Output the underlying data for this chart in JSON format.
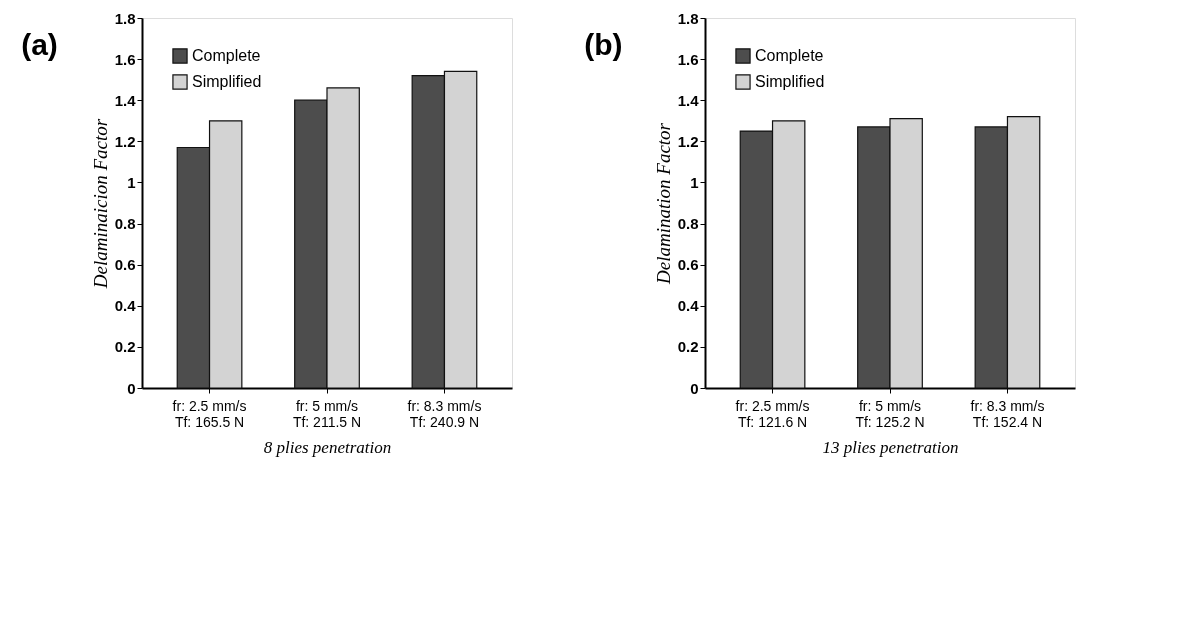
{
  "chart_data": [
    {
      "type": "bar",
      "title": "(a)",
      "ylabel": "Delaminaicion Factor",
      "xlabel": "8 plies penetration",
      "categories": [
        "fr: 2.5 mm/s\nTf: 165.5 N",
        "fr: 5 mm/s\nTf: 211.5 N",
        "fr: 8.3 mm/s\nTf: 240.9 N"
      ],
      "series": [
        {
          "name": "Complete",
          "color": "#4d4d4d",
          "values": [
            1.17,
            1.4,
            1.52
          ]
        },
        {
          "name": "Simplified",
          "color": "#d3d3d3",
          "values": [
            1.3,
            1.46,
            1.54
          ]
        }
      ],
      "ylim": [
        0,
        1.8
      ],
      "yticks": [
        0,
        0.2,
        0.4,
        0.6,
        0.8,
        1,
        1.2,
        1.4,
        1.6,
        1.8
      ],
      "grid": false,
      "legend": "top left"
    },
    {
      "type": "bar",
      "title": "(b)",
      "ylabel": "Delamination Factor",
      "xlabel": "13 plies penetration",
      "categories": [
        "fr: 2.5 mm/s\nTf: 121.6 N",
        "fr: 5 mm/s\nTf: 125.2 N",
        "fr: 8.3 mm/s\nTf: 152.4 N"
      ],
      "series": [
        {
          "name": "Complete",
          "color": "#4d4d4d",
          "values": [
            1.25,
            1.27,
            1.27
          ]
        },
        {
          "name": "Simplified",
          "color": "#d3d3d3",
          "values": [
            1.3,
            1.31,
            1.32
          ]
        }
      ],
      "ylim": [
        0,
        1.8
      ],
      "yticks": [
        0,
        0.2,
        0.4,
        0.6,
        0.8,
        1,
        1.2,
        1.4,
        1.6,
        1.8
      ],
      "grid": false,
      "legend": "top left"
    }
  ]
}
